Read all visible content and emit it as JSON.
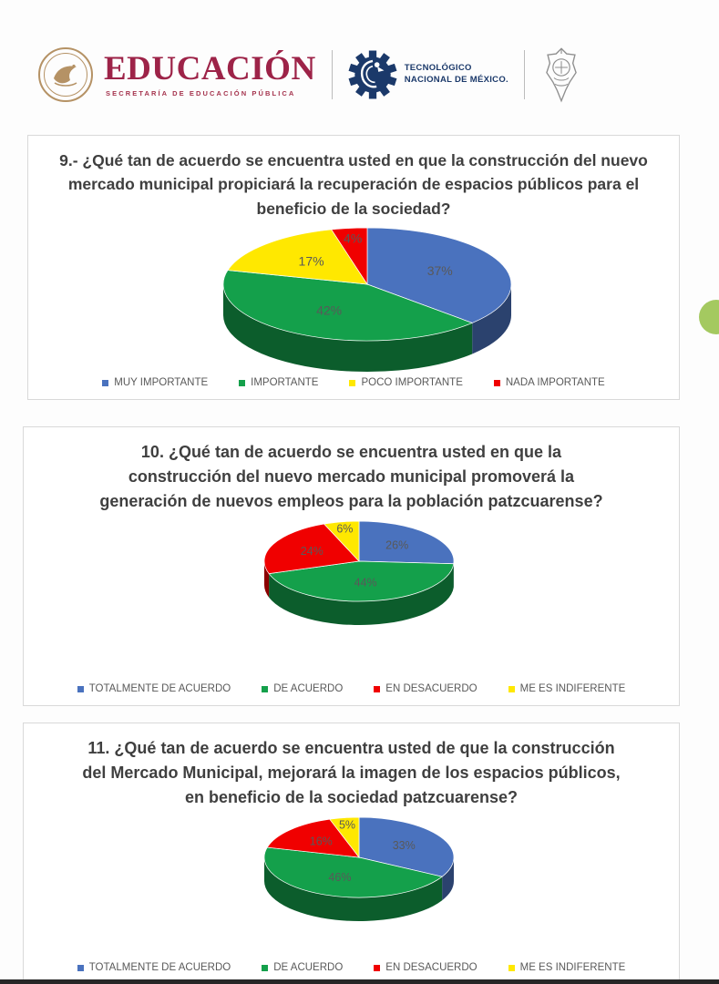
{
  "header": {
    "educacion_title": "EDUCACIÓN",
    "educacion_subtitle": "SECRETARÍA DE EDUCACIÓN PÚBLICA",
    "tecnm_line1": "TECNOLÓGICO",
    "tecnm_line2": "NACIONAL DE MÉXICO.",
    "icons": [
      "mexican-eagle-seal",
      "tecnm-gear-eagle-logo",
      "institution-crest"
    ],
    "colors": {
      "maroon": "#9D2348",
      "navy": "#1B396A",
      "gold": "#B59265"
    }
  },
  "chart_data": [
    {
      "type": "pie",
      "style": "3d",
      "title": "9.- ¿Qué tan de acuerdo se encuentra usted en que la construcción del nuevo mercado municipal propiciará la recuperación de espacios públicos para el beneficio de la sociedad?",
      "labels": [
        "MUY IMPORTANTE",
        "IMPORTANTE",
        "POCO IMPORTANTE",
        "NADA IMPORTANTE"
      ],
      "values": [
        37,
        42,
        17,
        4
      ],
      "data_labels": [
        "37%",
        "42%",
        "17%",
        "4%"
      ],
      "colors": [
        "#4A72BE",
        "#14A04B",
        "#FFE800",
        "#F00000"
      ],
      "legend_position": "bottom"
    },
    {
      "type": "pie",
      "style": "3d",
      "title": "10. ¿Qué tan de acuerdo se encuentra usted en que la construcción del nuevo mercado municipal promoverá la generación de nuevos empleos para la población patzcuarense?",
      "labels": [
        "TOTALMENTE DE ACUERDO",
        "DE ACUERDO",
        "EN DESACUERDO",
        "ME ES INDIFERENTE"
      ],
      "values": [
        26,
        44,
        24,
        6
      ],
      "data_labels": [
        "26%",
        "44%",
        "24%",
        "6%"
      ],
      "colors": [
        "#4A72BE",
        "#14A04B",
        "#F00000",
        "#FFE800"
      ],
      "legend_position": "bottom"
    },
    {
      "type": "pie",
      "style": "3d",
      "title": "11. ¿Qué tan de acuerdo se encuentra usted de que la construcción del Mercado Municipal, mejorará la imagen de los espacios públicos, en beneficio de la sociedad patzcuarense?",
      "labels": [
        "TOTALMENTE DE ACUERDO",
        "DE ACUERDO",
        "EN DESACUERDO",
        "ME ES INDIFERENTE"
      ],
      "values": [
        33,
        46,
        16,
        5
      ],
      "data_labels": [
        "33%",
        "46%",
        "16%",
        "5%"
      ],
      "colors": [
        "#4A72BE",
        "#14A04B",
        "#F00000",
        "#FFE800"
      ],
      "legend_position": "bottom"
    }
  ],
  "ui": {
    "floating_button_color": "#A4C960",
    "label_text_color": "#595959",
    "title_text_color": "#3F3F3F"
  }
}
